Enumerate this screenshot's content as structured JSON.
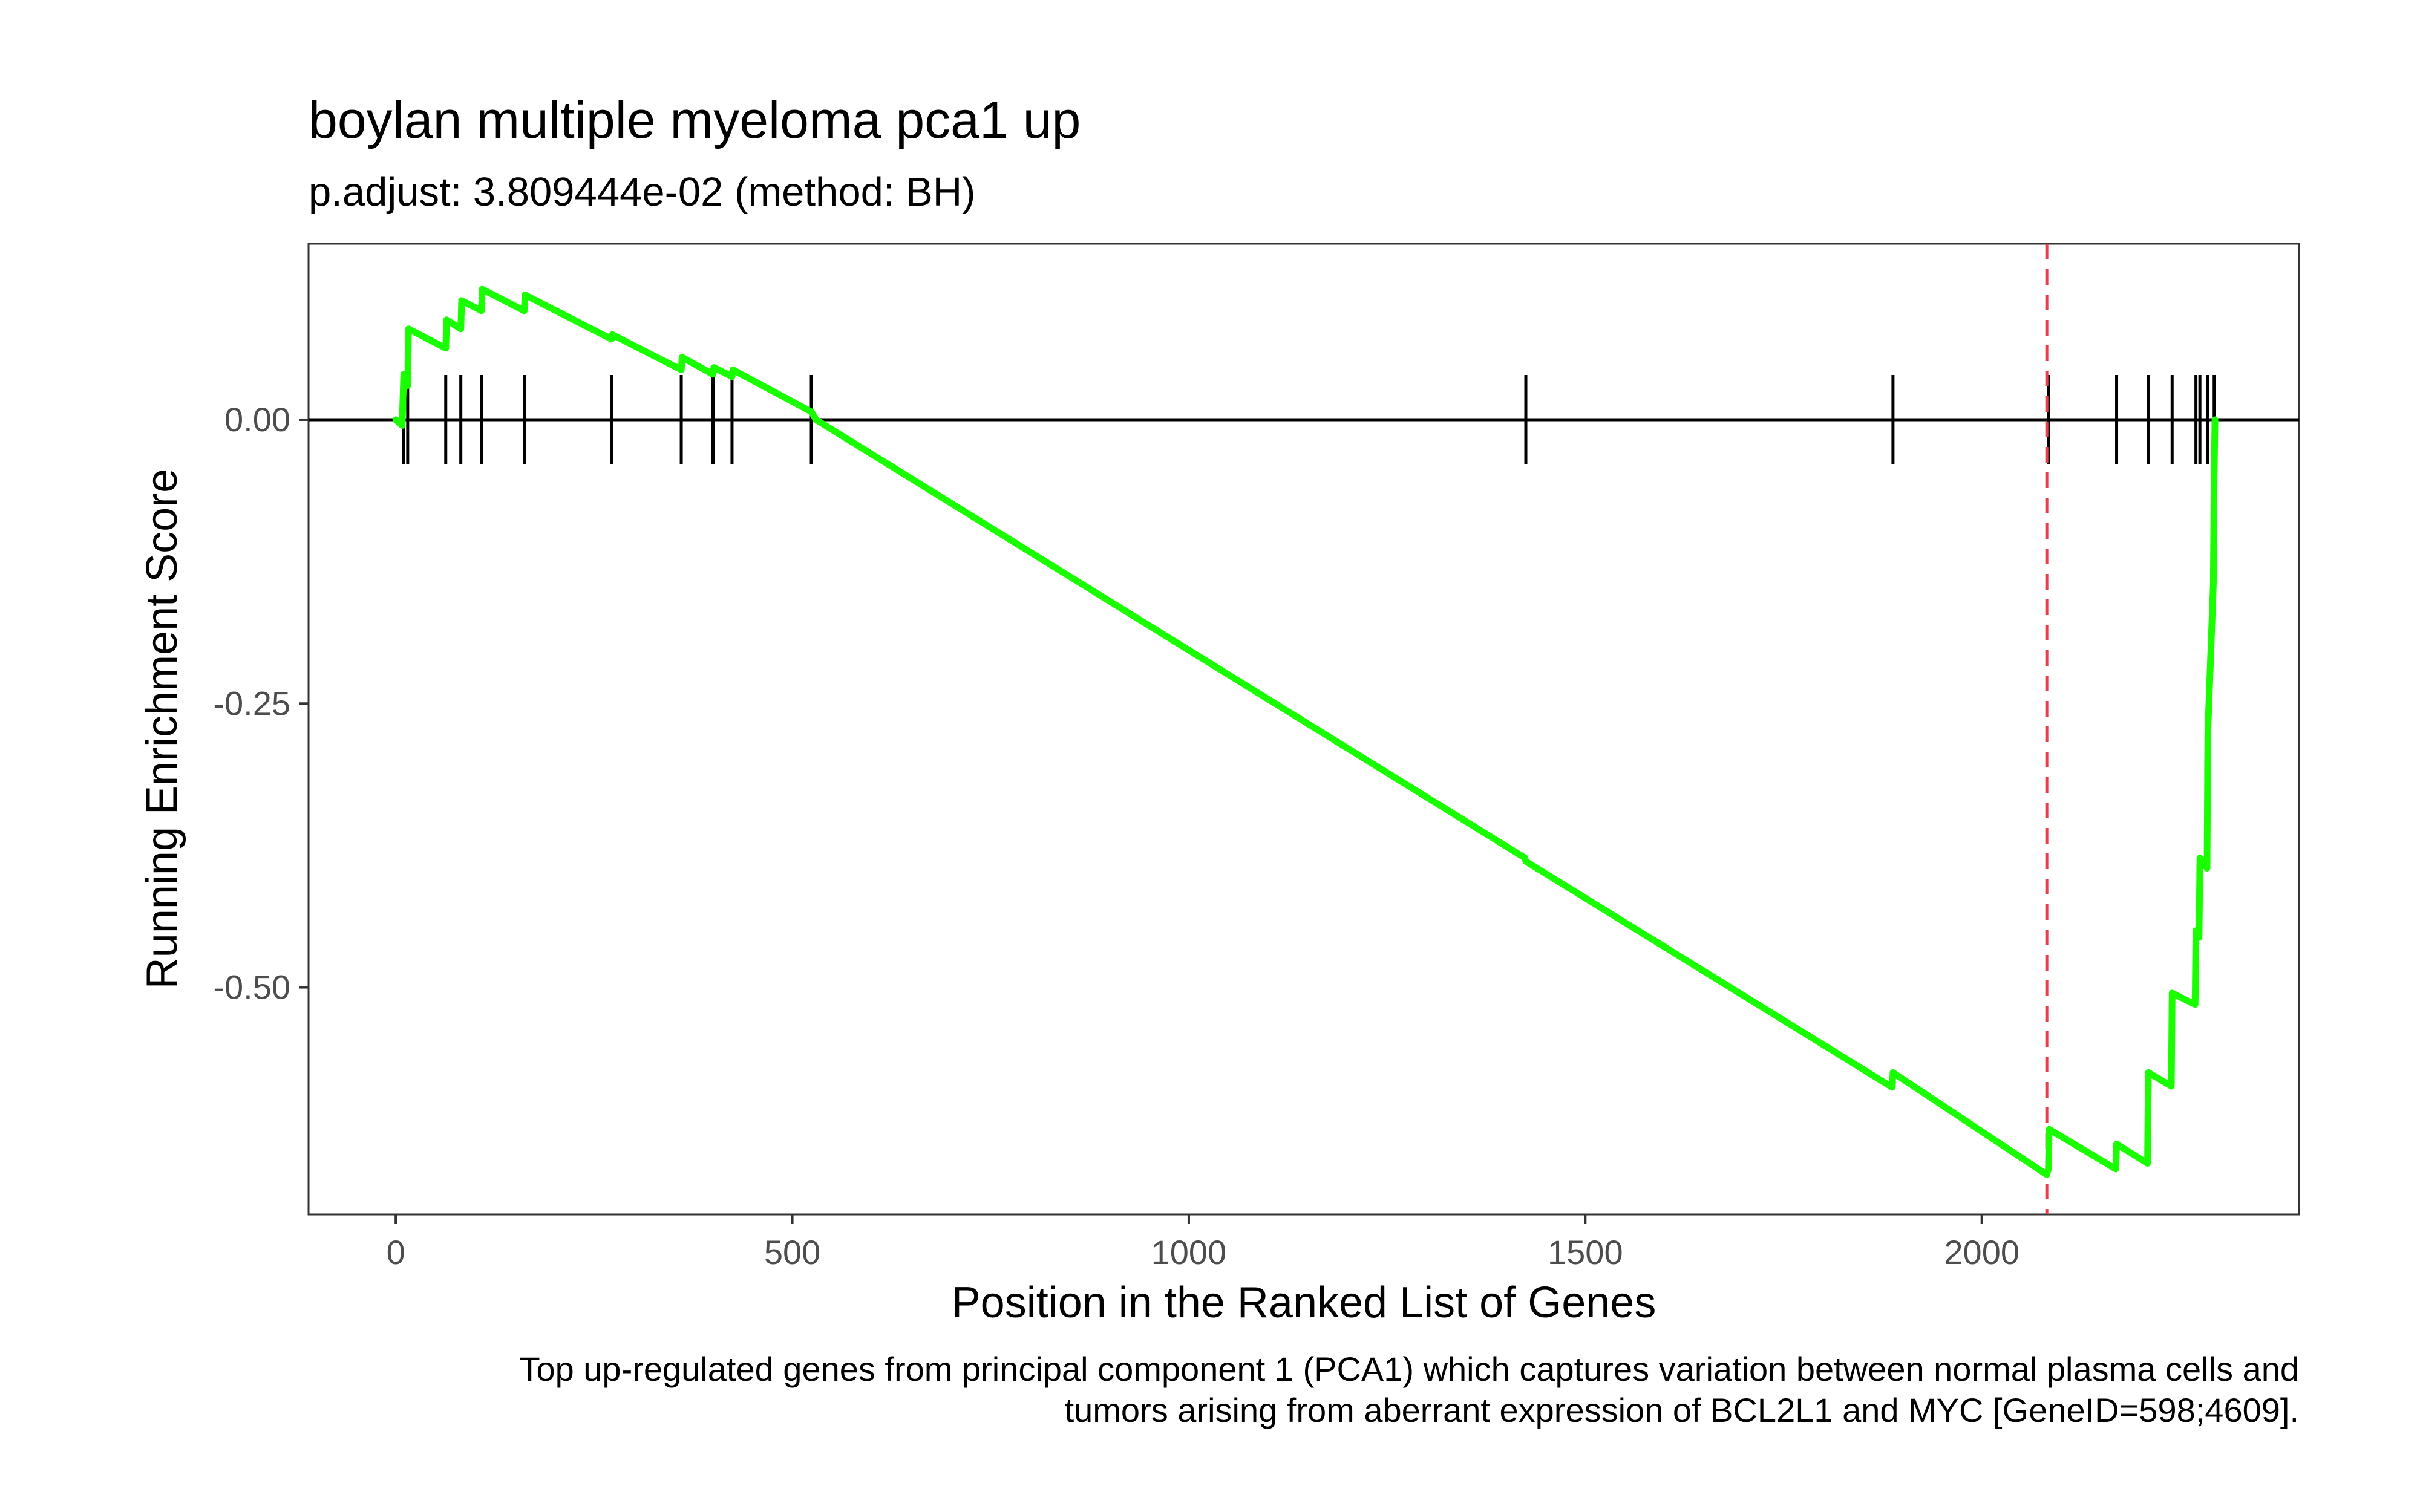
{
  "chart_data": {
    "type": "line",
    "title": "boylan multiple myeloma pca1 up",
    "subtitle": "p.adjust: 3.809444e-02 (method: BH)",
    "xlabel": "Position in the Ranked List of Genes",
    "ylabel": "Running Enrichment Score",
    "caption_lines": [
      "Top up-regulated genes from principal component 1 (PCA1) which captures variation between normal plasma cells and",
      "tumors arising from aberrant expression of BCL2L1 and MYC [GeneID=598;4609]."
    ],
    "xlim": [
      -110,
      2400
    ],
    "ylim": [
      -0.7,
      0.155
    ],
    "x_ticks": [
      0,
      500,
      1000,
      1500,
      2000
    ],
    "x_tick_labels": [
      "0",
      "500",
      "1000",
      "1500",
      "2000"
    ],
    "y_ticks": [
      0.0,
      -0.25,
      -0.5
    ],
    "y_tick_labels": [
      "0.00",
      "-0.25",
      "-0.50"
    ],
    "grid": false,
    "line_color": "#19ff00",
    "marker_color": "#000000",
    "es_line_color": "#ef3b4c",
    "es_position": 2082,
    "gene_hits": [
      10,
      15,
      63,
      82,
      108,
      162,
      272,
      360,
      400,
      424,
      524,
      1425,
      1888,
      2084,
      2170,
      2210,
      2240,
      2270,
      2275,
      2285,
      2293
    ],
    "series": [
      {
        "x": [
          0,
          8,
          10,
          11,
          15,
          16,
          63,
          64,
          82,
          83,
          108,
          109,
          162,
          163,
          272,
          273,
          360,
          361,
          400,
          401,
          424,
          425,
          524,
          530,
          1424,
          1425,
          1887,
          1888,
          2082,
          2084,
          2085,
          2169,
          2170,
          2209,
          2210,
          2239,
          2240,
          2269,
          2270,
          2274,
          2275,
          2284,
          2285,
          2292,
          2293,
          2294
        ],
        "y": [
          0.0,
          -0.005,
          0.04,
          0.035,
          0.03,
          0.08,
          0.063,
          0.088,
          0.08,
          0.105,
          0.096,
          0.115,
          0.096,
          0.11,
          0.071,
          0.075,
          0.044,
          0.055,
          0.04,
          0.046,
          0.038,
          0.044,
          0.007,
          0.0,
          -0.386,
          -0.389,
          -0.588,
          -0.575,
          -0.665,
          -0.66,
          -0.625,
          -0.66,
          -0.638,
          -0.655,
          -0.575,
          -0.587,
          -0.505,
          -0.515,
          -0.45,
          -0.456,
          -0.386,
          -0.395,
          -0.275,
          -0.145,
          -0.05,
          0.0
        ]
      }
    ]
  }
}
